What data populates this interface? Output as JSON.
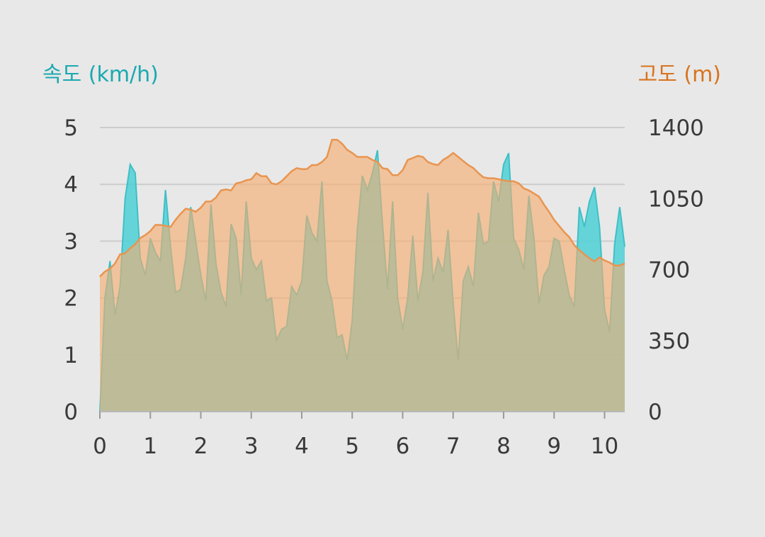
{
  "chart_data": {
    "type": "area",
    "left_axis_label": "속도 (km/h)",
    "right_axis_label": "고도 (m)",
    "colors": {
      "speed": "#4dd0d6",
      "elevation": "#f5ad6f",
      "speed_label": "#1aa9b0",
      "elevation_label": "#d8731d",
      "gridline": "#cccccc"
    },
    "x_ticks": [
      "0",
      "1",
      "2",
      "3",
      "4",
      "5",
      "6",
      "7",
      "8",
      "9",
      "10"
    ],
    "left_ticks": [
      "0",
      "1",
      "2",
      "3",
      "4",
      "5"
    ],
    "right_ticks": [
      "0",
      "350",
      "700",
      "1050",
      "1400"
    ],
    "xlim": [
      0,
      10.4
    ],
    "left_ylim": [
      0,
      5
    ],
    "right_ylim": [
      0,
      1400
    ],
    "grid": true,
    "series": [
      {
        "name": "속도",
        "axis": "left",
        "x": [
          0,
          0.1,
          0.2,
          0.3,
          0.4,
          0.5,
          0.6,
          0.7,
          0.8,
          0.9,
          1.0,
          1.1,
          1.2,
          1.3,
          1.4,
          1.5,
          1.6,
          1.7,
          1.8,
          1.9,
          2.0,
          2.1,
          2.2,
          2.3,
          2.4,
          2.5,
          2.6,
          2.7,
          2.8,
          2.9,
          3.0,
          3.1,
          3.2,
          3.3,
          3.4,
          3.5,
          3.6,
          3.7,
          3.8,
          3.9,
          4.0,
          4.1,
          4.2,
          4.3,
          4.4,
          4.5,
          4.6,
          4.7,
          4.8,
          4.9,
          5.0,
          5.1,
          5.2,
          5.3,
          5.4,
          5.5,
          5.6,
          5.7,
          5.8,
          5.9,
          6.0,
          6.1,
          6.2,
          6.3,
          6.4,
          6.5,
          6.6,
          6.7,
          6.8,
          6.9,
          7.0,
          7.1,
          7.2,
          7.3,
          7.4,
          7.5,
          7.6,
          7.7,
          7.8,
          7.9,
          8.0,
          8.1,
          8.2,
          8.3,
          8.4,
          8.5,
          8.6,
          8.7,
          8.8,
          8.9,
          9.0,
          9.1,
          9.2,
          9.3,
          9.4,
          9.5,
          9.6,
          9.7,
          9.8,
          9.9,
          10.0,
          10.1,
          10.2,
          10.3,
          10.4
        ],
        "values": [
          0,
          2.0,
          2.65,
          1.7,
          2.2,
          3.75,
          4.35,
          4.2,
          2.7,
          2.4,
          3.05,
          2.8,
          2.65,
          3.9,
          2.9,
          2.1,
          2.15,
          2.7,
          3.6,
          3.0,
          2.4,
          1.95,
          3.65,
          2.6,
          2.1,
          1.85,
          3.3,
          3.05,
          2.05,
          3.7,
          2.7,
          2.5,
          2.65,
          1.95,
          2.0,
          1.25,
          1.45,
          1.5,
          2.2,
          2.05,
          2.3,
          3.45,
          3.15,
          3.0,
          4.05,
          2.3,
          1.95,
          1.3,
          1.35,
          0.9,
          1.6,
          3.2,
          4.15,
          3.9,
          4.2,
          4.6,
          3.3,
          2.15,
          3.7,
          2.0,
          1.45,
          2.0,
          3.1,
          1.95,
          2.45,
          3.85,
          2.3,
          2.7,
          2.45,
          3.2,
          1.9,
          0.9,
          2.3,
          2.55,
          2.2,
          3.5,
          2.95,
          3.0,
          4.05,
          3.7,
          4.35,
          4.55,
          3.05,
          2.85,
          2.5,
          3.8,
          3.05,
          1.9,
          2.4,
          2.55,
          3.05,
          3.0,
          2.5,
          2.05,
          1.85,
          3.6,
          3.25,
          3.7,
          3.95,
          3.25,
          1.8,
          1.4,
          2.95,
          3.6,
          2.9
        ]
      },
      {
        "name": "고도",
        "axis": "right",
        "x": [
          0,
          0.1,
          0.2,
          0.3,
          0.4,
          0.5,
          0.6,
          0.7,
          0.8,
          0.9,
          1.0,
          1.1,
          1.2,
          1.3,
          1.4,
          1.5,
          1.6,
          1.7,
          1.8,
          1.9,
          2.0,
          2.1,
          2.2,
          2.3,
          2.4,
          2.5,
          2.6,
          2.7,
          2.8,
          2.9,
          3.0,
          3.1,
          3.2,
          3.3,
          3.4,
          3.5,
          3.6,
          3.7,
          3.8,
          3.9,
          4.0,
          4.1,
          4.2,
          4.3,
          4.4,
          4.5,
          4.6,
          4.7,
          4.8,
          4.9,
          5.0,
          5.1,
          5.2,
          5.3,
          5.4,
          5.5,
          5.6,
          5.7,
          5.8,
          5.9,
          6.0,
          6.1,
          6.2,
          6.3,
          6.4,
          6.5,
          6.6,
          6.7,
          6.8,
          6.9,
          7.0,
          7.1,
          7.2,
          7.3,
          7.4,
          7.5,
          7.6,
          7.7,
          7.8,
          7.9,
          8.0,
          8.1,
          8.2,
          8.3,
          8.4,
          8.5,
          8.6,
          8.7,
          8.8,
          8.9,
          9.0,
          9.1,
          9.2,
          9.3,
          9.4,
          9.5,
          9.6,
          9.7,
          9.8,
          9.9,
          10.0,
          10.1,
          10.2,
          10.3,
          10.4
        ],
        "values": [
          665,
          690,
          705,
          730,
          775,
          780,
          805,
          825,
          855,
          870,
          890,
          920,
          920,
          915,
          910,
          945,
          975,
          1000,
          995,
          985,
          1005,
          1035,
          1035,
          1055,
          1090,
          1095,
          1090,
          1125,
          1130,
          1140,
          1145,
          1175,
          1160,
          1160,
          1125,
          1120,
          1135,
          1160,
          1185,
          1200,
          1195,
          1195,
          1215,
          1215,
          1230,
          1255,
          1340,
          1340,
          1320,
          1290,
          1275,
          1255,
          1255,
          1255,
          1240,
          1230,
          1200,
          1195,
          1165,
          1165,
          1190,
          1240,
          1250,
          1260,
          1255,
          1230,
          1220,
          1215,
          1240,
          1255,
          1275,
          1255,
          1235,
          1215,
          1200,
          1175,
          1155,
          1150,
          1150,
          1145,
          1140,
          1135,
          1135,
          1125,
          1100,
          1090,
          1075,
          1060,
          1020,
          985,
          945,
          915,
          885,
          860,
          820,
          795,
          775,
          755,
          740,
          760,
          745,
          735,
          720,
          720,
          730
        ]
      }
    ]
  }
}
